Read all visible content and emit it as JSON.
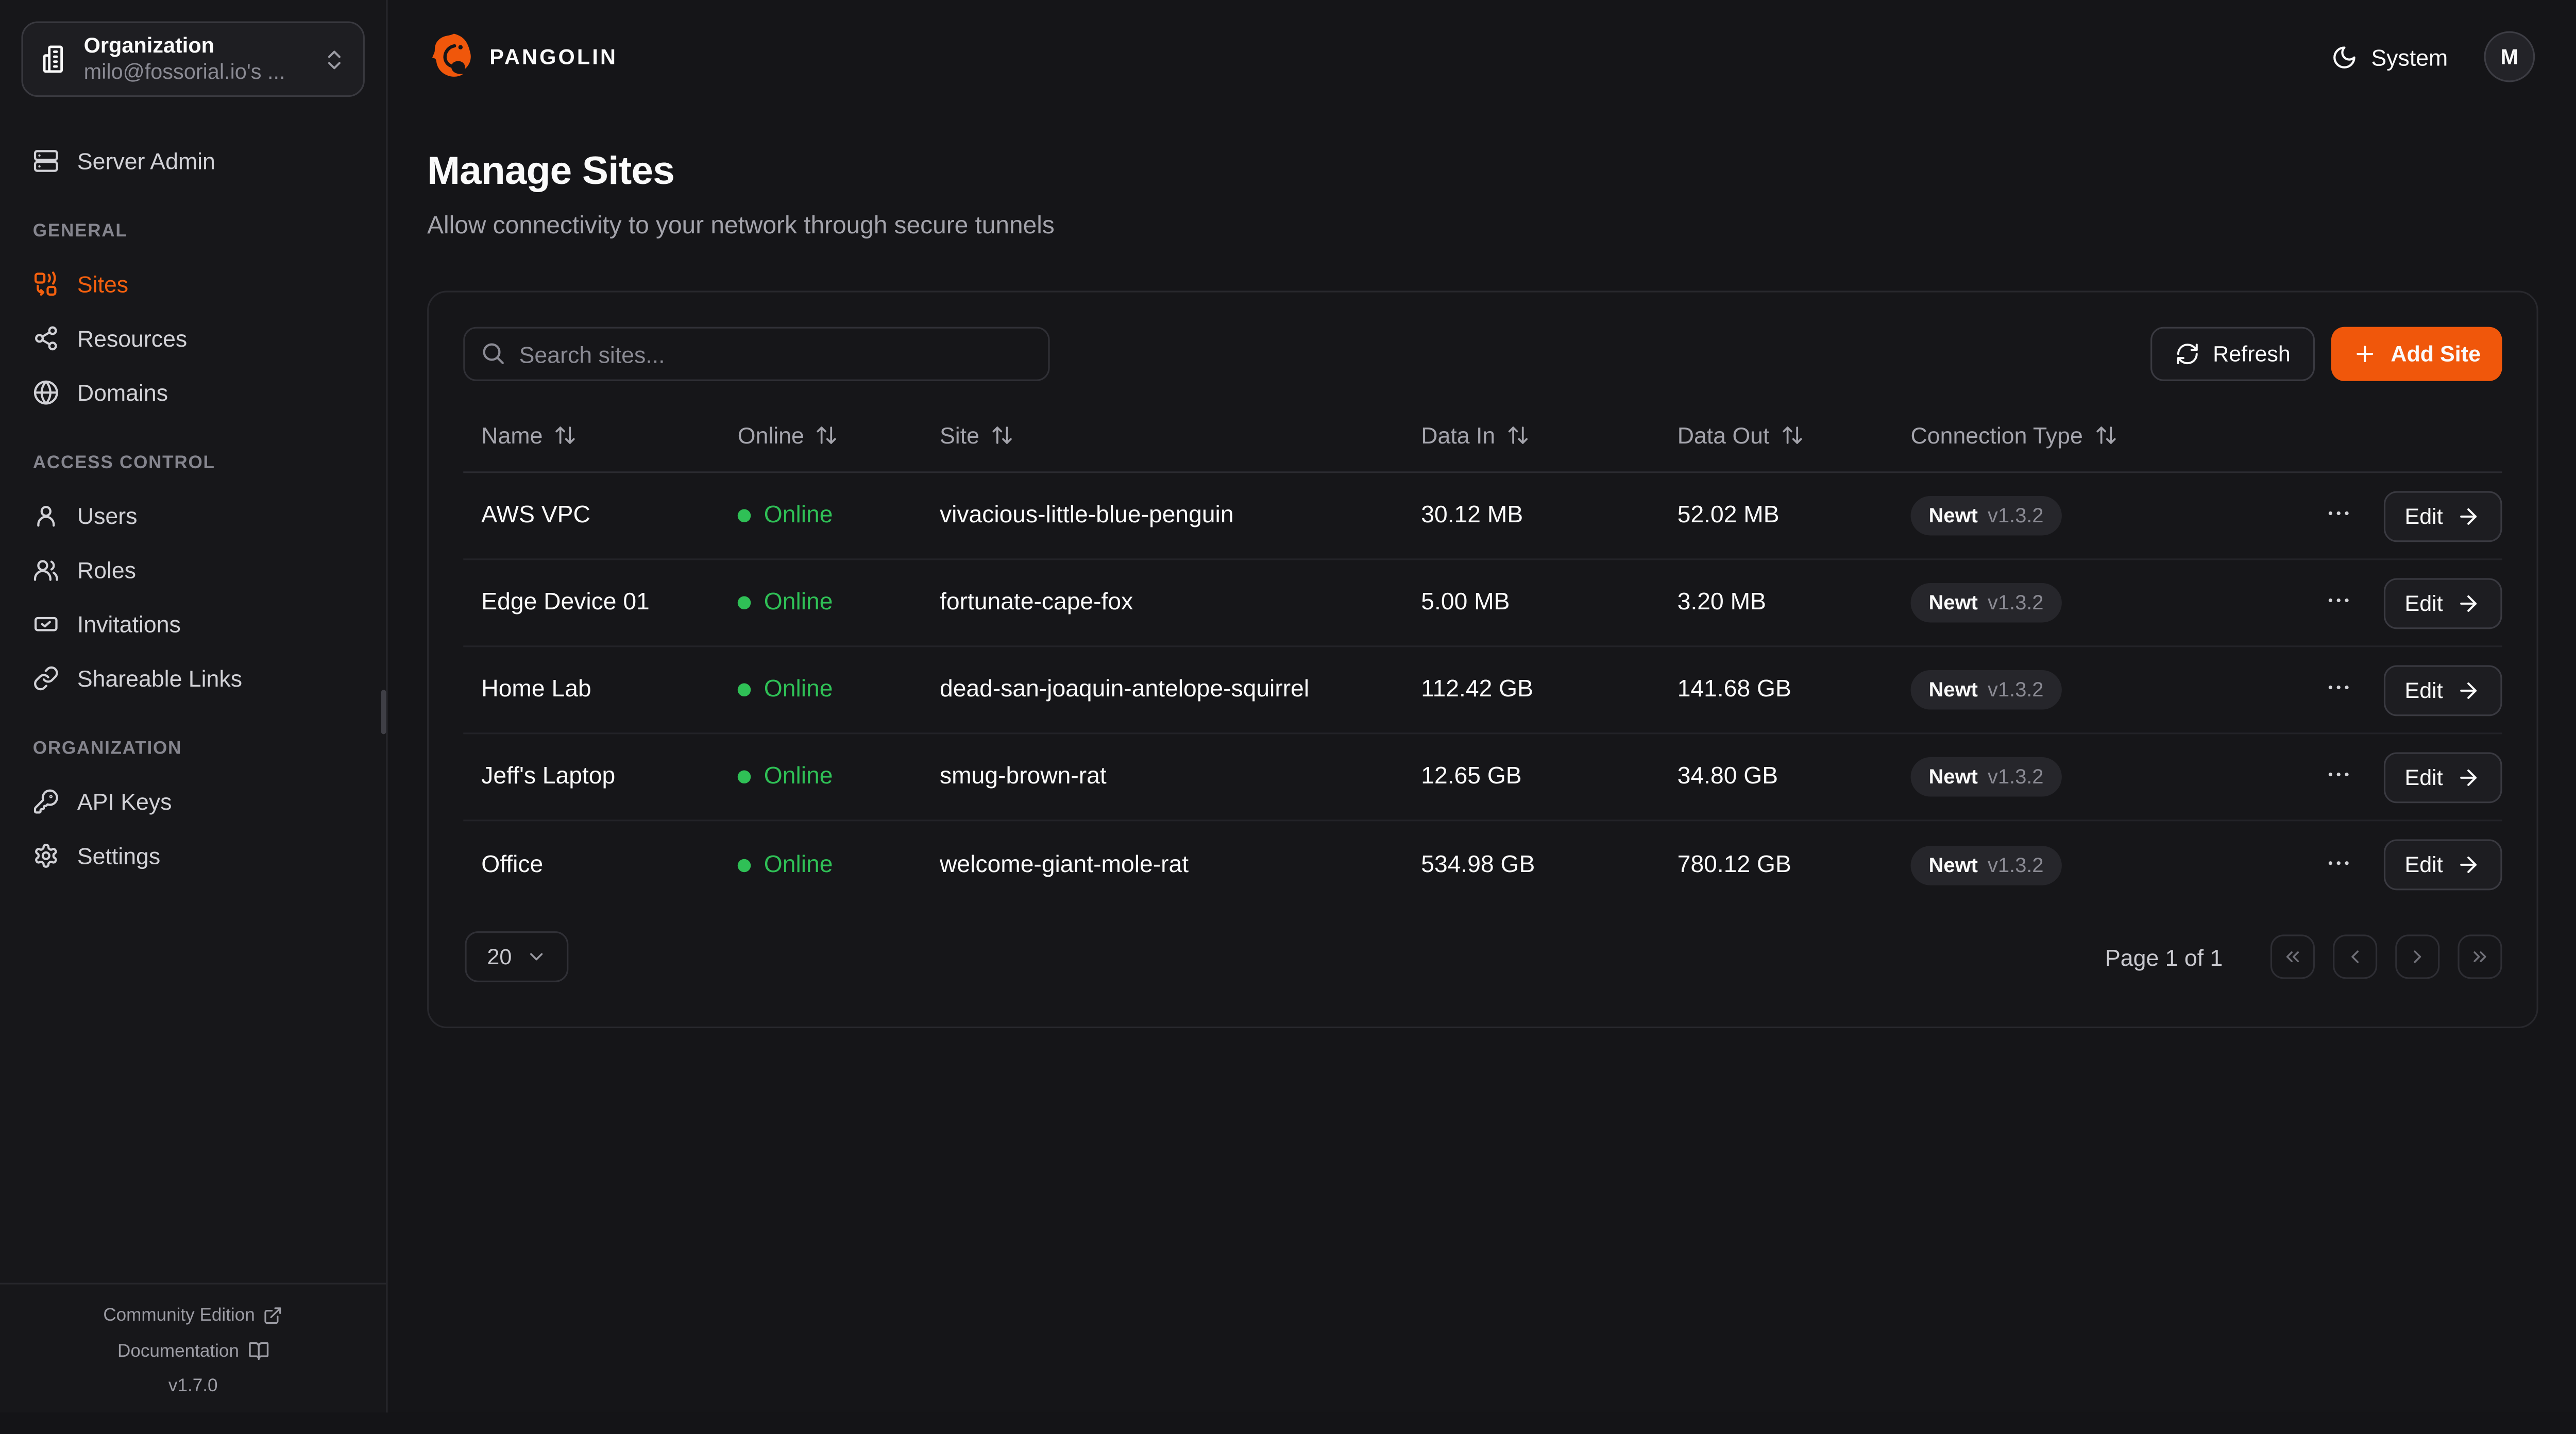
{
  "theme": {
    "accent": "#f0570b",
    "green": "#2fc056",
    "bg": "#151518"
  },
  "sidebar": {
    "org": {
      "label": "Organization",
      "value": "milo@fossorial.io's ..."
    },
    "sections": [
      {
        "title": "",
        "items": [
          {
            "label": "Server Admin",
            "icon": "server",
            "active": false
          }
        ]
      },
      {
        "title": "GENERAL",
        "items": [
          {
            "label": "Sites",
            "icon": "sites",
            "active": true
          },
          {
            "label": "Resources",
            "icon": "resources",
            "active": false
          },
          {
            "label": "Domains",
            "icon": "globe",
            "active": false
          }
        ]
      },
      {
        "title": "ACCESS CONTROL",
        "items": [
          {
            "label": "Users",
            "icon": "user",
            "active": false
          },
          {
            "label": "Roles",
            "icon": "users",
            "active": false
          },
          {
            "label": "Invitations",
            "icon": "mail",
            "active": false
          },
          {
            "label": "Shareable Links",
            "icon": "link",
            "active": false
          }
        ]
      },
      {
        "title": "ORGANIZATION",
        "items": [
          {
            "label": "API Keys",
            "icon": "key",
            "active": false
          },
          {
            "label": "Settings",
            "icon": "gear",
            "active": false
          }
        ]
      }
    ],
    "footer": {
      "community": "Community Edition",
      "documentation": "Documentation",
      "version": "v1.7.0"
    }
  },
  "topbar": {
    "brand": "PANGOLIN",
    "theme_toggle": "System",
    "avatar_initial": "M"
  },
  "page": {
    "title": "Manage Sites",
    "subtitle": "Allow connectivity to your network through secure tunnels"
  },
  "toolbar": {
    "search_placeholder": "Search sites...",
    "refresh_label": "Refresh",
    "add_site_label": "Add Site"
  },
  "table": {
    "columns": [
      "Name",
      "Online",
      "Site",
      "Data In",
      "Data Out",
      "Connection Type"
    ],
    "rows": [
      {
        "name": "AWS VPC",
        "status": "Online",
        "site": "vivacious-little-blue-penguin",
        "data_in": "30.12 MB",
        "data_out": "52.02 MB",
        "conn_type": "Newt",
        "conn_version": "v1.3.2",
        "edit_label": "Edit"
      },
      {
        "name": "Edge Device 01",
        "status": "Online",
        "site": "fortunate-cape-fox",
        "data_in": "5.00 MB",
        "data_out": "3.20 MB",
        "conn_type": "Newt",
        "conn_version": "v1.3.2",
        "edit_label": "Edit"
      },
      {
        "name": "Home Lab",
        "status": "Online",
        "site": "dead-san-joaquin-antelope-squirrel",
        "data_in": "112.42 GB",
        "data_out": "141.68 GB",
        "conn_type": "Newt",
        "conn_version": "v1.3.2",
        "edit_label": "Edit"
      },
      {
        "name": "Jeff's Laptop",
        "status": "Online",
        "site": "smug-brown-rat",
        "data_in": "12.65 GB",
        "data_out": "34.80 GB",
        "conn_type": "Newt",
        "conn_version": "v1.3.2",
        "edit_label": "Edit"
      },
      {
        "name": "Office",
        "status": "Online",
        "site": "welcome-giant-mole-rat",
        "data_in": "534.98 GB",
        "data_out": "780.12 GB",
        "conn_type": "Newt",
        "conn_version": "v1.3.2",
        "edit_label": "Edit"
      }
    ]
  },
  "pagination": {
    "page_size": "20",
    "label": "Page 1 of 1"
  }
}
